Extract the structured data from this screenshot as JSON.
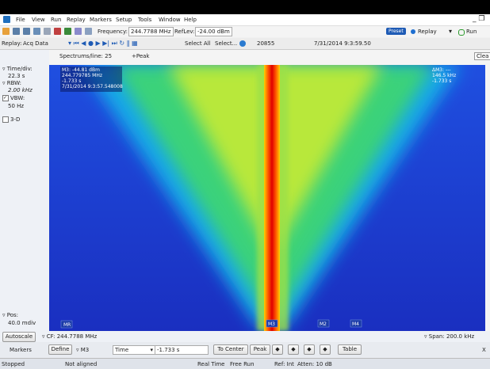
{
  "menu": {
    "items": [
      "File",
      "View",
      "Run",
      "Replay",
      "Markers",
      "Setup",
      "Tools",
      "Window",
      "Help"
    ]
  },
  "toolbar": {
    "frequency_label": "Frequency:",
    "frequency": "244.7788 MHz",
    "reflev_label": "RefLev:",
    "reflev": "-24.00 dBm",
    "preset": "Preset",
    "replay": "Replay",
    "run": "Run"
  },
  "replay_bar": {
    "label": "Replay:",
    "source": "Acq Data",
    "select_all": "Select All",
    "select": "Select...",
    "count": "20855",
    "timestamp": "7/31/2014 9:3:59.50"
  },
  "side_panel": {
    "time_div_label": "Time/div:",
    "time_div": "22.3 s",
    "rbw_label": "RBW:",
    "rbw": "2.00 kHz",
    "vbw_label": "VBW:",
    "vbw": "50 Hz",
    "three_d": "3-D",
    "pos_label": "Pos:",
    "pos": "40.0 mdiv"
  },
  "plot_header": {
    "spectrums_per_line": "Spectrums/line: 25",
    "detection": "+Peak",
    "clear": "Clea"
  },
  "marker_readout": {
    "lines": [
      "M3: -44.81 dBm",
      "244.779785 MHz",
      "-1.733 s",
      "7/31/2014 9:3:57.548008"
    ]
  },
  "delta_readout": {
    "lines": [
      "ΔM3: ---",
      "146.5 kHz",
      "-1.733 s"
    ]
  },
  "marker_flags": [
    "MR",
    "M3",
    "M2",
    "M4"
  ],
  "bottom_bar": {
    "autoscale": "Autoscale",
    "cf": "CF: 244.7788 MHz",
    "span": "Span: 200.0 kHz"
  },
  "markers_bar": {
    "label": "Markers",
    "define": "Define",
    "marker": "M3",
    "axis": "Time",
    "value": "-1.733 s",
    "to_center": "To Center",
    "peak": "Peak",
    "table": "Table",
    "close": "X"
  },
  "status_bar": [
    "Stopped",
    "Not aligned",
    "Real Time",
    "Free Run",
    "Ref: Int",
    "Atten: 10 dB"
  ]
}
